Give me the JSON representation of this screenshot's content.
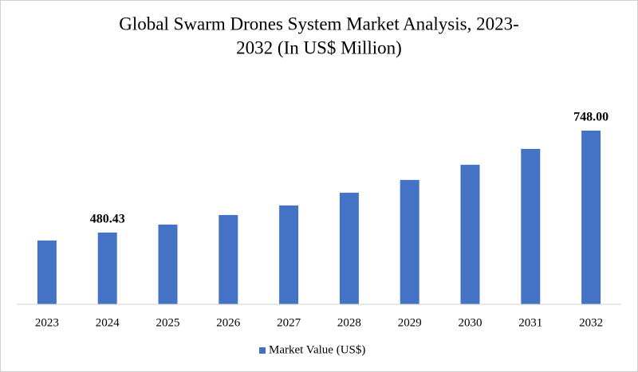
{
  "chart_data": {
    "type": "bar",
    "title": [
      "Global Swarm Drones System Market Analysis, 2023-",
      "2032 (In US$ Million)"
    ],
    "categories": [
      "2023",
      "2024",
      "2025",
      "2026",
      "2027",
      "2028",
      "2029",
      "2030",
      "2031",
      "2032"
    ],
    "series": [
      {
        "name": "Market Value (US$)",
        "color": "#4472c4",
        "values": [
          459.5,
          480.43,
          501.3,
          526.4,
          551.5,
          585.0,
          618.5,
          658.3,
          700.0,
          748.0
        ],
        "value_labels": [
          null,
          "480.43",
          null,
          null,
          null,
          null,
          null,
          null,
          null,
          "748.00"
        ]
      }
    ],
    "ylim": [
      292,
      819
    ],
    "legend": "bottom"
  }
}
